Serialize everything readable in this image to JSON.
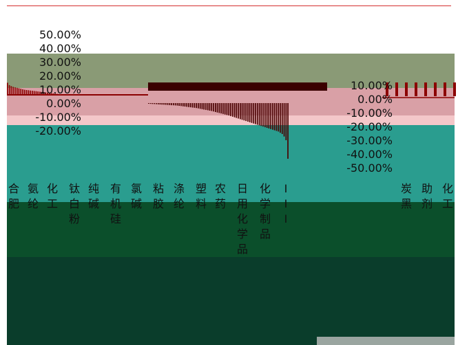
{
  "chart_data": [
    {
      "type": "bar",
      "yticks": [
        "50.00%",
        "40.00%",
        "30.00%",
        "20.00%",
        "10.00%",
        "0.00%",
        "-10.00%",
        "-20.00%"
      ],
      "ylim": [
        -20,
        50
      ],
      "categories": [
        "",
        "",
        "",
        "",
        "",
        "",
        "",
        "",
        "",
        "",
        "",
        "",
        "",
        "",
        "",
        "",
        "",
        "",
        "",
        "",
        "",
        "",
        "",
        "",
        "",
        "",
        "",
        "",
        "",
        "",
        "",
        "",
        "",
        "",
        "",
        "",
        "",
        "",
        "",
        "",
        "",
        "",
        "",
        "",
        "",
        "",
        "",
        "",
        "",
        "",
        "",
        "",
        "",
        "",
        "",
        "",
        "",
        "",
        "",
        "",
        "",
        "",
        "",
        "",
        "",
        "",
        "",
        "",
        "",
        "",
        "",
        "",
        "",
        ""
      ],
      "values": [
        5,
        4,
        3.6,
        3.3,
        3.1,
        2.9,
        2.7,
        2.5,
        2.3,
        2.1,
        2.0,
        1.9,
        1.8,
        1.7,
        1.6,
        1.5,
        1.4,
        1.3,
        1.2,
        1.1,
        1.0,
        0.9,
        0.8,
        0.7,
        0.6,
        0.5,
        0.4,
        0.3,
        0.2,
        0.1,
        0.1,
        0.1,
        0.1,
        0.1,
        0.1,
        0.1,
        0.1,
        0.1,
        0.1,
        0.1,
        0.1,
        0.1,
        0.1,
        0.1,
        0.1,
        0.1,
        0.1,
        0.1,
        0.1,
        0.1,
        0.1,
        0.1,
        0.1,
        0.1,
        0.1,
        0.1,
        0.1,
        0.1,
        0.1,
        0.1,
        0.1,
        0.1,
        0.1,
        0.1,
        0.1,
        0.1,
        0.1,
        0.1,
        0.1,
        0.1,
        0.1,
        0.1,
        0.1,
        0.1
      ]
    },
    {
      "type": "bar",
      "yticks": [
        "10.00%",
        "0.00%",
        "-10.00%",
        "-20.00%",
        "-30.00%",
        "-40.00%",
        "-50.00%"
      ],
      "ylim": [
        -50,
        10
      ],
      "categories": [
        "",
        "",
        "",
        "",
        "",
        "",
        "",
        "",
        "",
        "",
        "",
        "",
        "",
        "",
        "",
        "",
        "",
        "",
        "",
        "",
        "",
        "",
        "",
        "",
        "",
        "",
        "",
        "",
        "",
        "",
        "",
        "",
        "",
        "",
        "",
        "",
        "",
        "",
        "",
        "",
        "",
        "",
        "",
        "",
        "",
        "",
        "",
        "",
        "",
        "",
        "",
        "",
        "",
        "",
        "",
        "",
        "",
        "",
        "",
        "",
        "",
        "",
        "",
        "",
        "",
        "",
        "",
        "",
        "",
        "",
        "",
        "",
        "",
        ""
      ],
      "values": [
        -0.5,
        -0.6,
        -0.7,
        -0.8,
        -0.9,
        -1.0,
        -1.1,
        -1.2,
        -1.3,
        -1.4,
        -1.5,
        -1.6,
        -1.7,
        -1.8,
        -1.9,
        -2.0,
        -2.2,
        -2.4,
        -2.6,
        -2.8,
        -3.0,
        -3.2,
        -3.4,
        -3.6,
        -3.8,
        -4.0,
        -4.3,
        -4.6,
        -4.9,
        -5.2,
        -5.5,
        -5.8,
        -6.1,
        -6.4,
        -6.8,
        -7.2,
        -7.6,
        -8.0,
        -8.4,
        -8.8,
        -9.2,
        -9.6,
        -10.0,
        -10.5,
        -11.0,
        -11.5,
        -12.0,
        -12.5,
        -13.0,
        -13.5,
        -14.0,
        -14.5,
        -15.0,
        -15.5,
        -16.0,
        -16.5,
        -17.0,
        -17.5,
        -18.0,
        -18.5,
        -19.0,
        -19.5,
        -20.0,
        -20.5,
        -21.0,
        -21.5,
        -22.0,
        -22.5,
        -23.0,
        -24.0,
        -25.0,
        -27.0,
        -30.0,
        -45.0
      ]
    }
  ],
  "colors": {
    "bar": "#8b0000",
    "negative_bar": "#3a0000",
    "teal_band": "#2a9d8f",
    "dark_band": "#0b4f2b",
    "navy_band": "#0a3d2b",
    "olive_band": "#8a9a76",
    "pink_band": "#d9a0a6",
    "light_pink_band": "#f4c7c9",
    "rule": "#d32f2f"
  },
  "category_glyphs": [
    "合肥",
    "氨纶",
    "化工",
    "钛白粉",
    "纯碱",
    "有机硅",
    "氯碱",
    "粘胶",
    "涤纶",
    "塑料",
    "农药",
    "日用化学品",
    "化学制品",
    "III",
    "炭黑",
    "助剂",
    "化工"
  ]
}
